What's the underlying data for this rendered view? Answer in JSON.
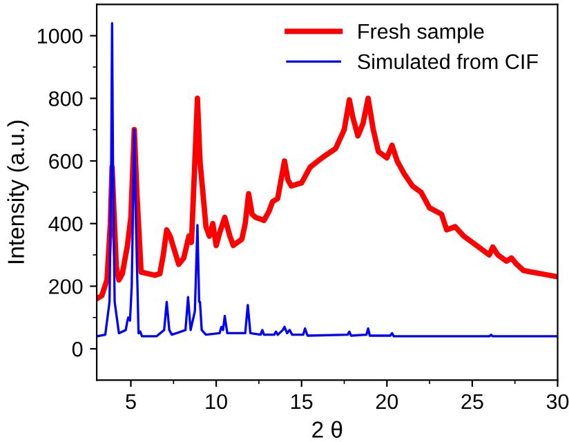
{
  "chart_data": {
    "type": "line",
    "xlabel": "2 θ",
    "ylabel": "Intensity (a.u.)",
    "xlim": [
      3,
      30
    ],
    "ylim": [
      -100,
      1100
    ],
    "xticks": [
      5,
      10,
      15,
      20,
      25,
      30
    ],
    "yticks": [
      0,
      200,
      400,
      600,
      800,
      1000
    ],
    "legend": "top right",
    "grid": false,
    "marker": "none",
    "line_style": "solid",
    "series": [
      {
        "name": "Fresh sample",
        "color": "#ff0000",
        "x": [
          3,
          3.3,
          3.6,
          3.8,
          3.9,
          4.0,
          4.15,
          4.3,
          4.5,
          4.8,
          5.0,
          5.2,
          5.35,
          5.6,
          6.0,
          6.4,
          6.7,
          6.9,
          7.1,
          7.3,
          7.8,
          8.1,
          8.4,
          8.55,
          8.75,
          8.9,
          9.05,
          9.4,
          9.6,
          9.8,
          10.0,
          10.2,
          10.5,
          10.8,
          11.0,
          11.5,
          11.7,
          11.9,
          12.1,
          12.3,
          12.8,
          13.1,
          13.3,
          13.6,
          13.8,
          14.0,
          14.2,
          14.4,
          15.0,
          15.5,
          16.2,
          17.0,
          17.5,
          17.8,
          18.0,
          18.3,
          18.6,
          18.9,
          19.2,
          19.5,
          20.0,
          20.3,
          20.6,
          21.0,
          21.5,
          22.0,
          22.5,
          23.2,
          23.5,
          24.0,
          24.5,
          25.0,
          26.0,
          26.2,
          26.5,
          27.0,
          27.3,
          27.6,
          28.0,
          29.0,
          30
        ],
        "values": [
          160,
          170,
          220,
          400,
          580,
          450,
          260,
          220,
          240,
          330,
          420,
          700,
          500,
          245,
          240,
          235,
          240,
          300,
          380,
          360,
          270,
          290,
          360,
          340,
          600,
          800,
          600,
          390,
          360,
          400,
          330,
          370,
          420,
          360,
          330,
          350,
          400,
          495,
          430,
          420,
          410,
          440,
          470,
          480,
          540,
          600,
          540,
          520,
          530,
          580,
          610,
          640,
          700,
          795,
          740,
          680,
          720,
          800,
          700,
          630,
          610,
          650,
          600,
          560,
          520,
          500,
          450,
          430,
          380,
          390,
          360,
          340,
          300,
          325,
          300,
          280,
          290,
          270,
          250,
          240,
          230
        ]
      },
      {
        "name": "Simulated from CIF",
        "color": "#0000ff",
        "x": [
          3,
          3.5,
          3.75,
          3.85,
          3.9,
          3.95,
          4.05,
          4.3,
          4.7,
          4.8,
          4.85,
          4.95,
          5.05,
          5.2,
          5.3,
          5.45,
          5.55,
          5.65,
          6.5,
          6.95,
          7.1,
          7.25,
          7.4,
          8.2,
          8.35,
          8.5,
          8.75,
          8.9,
          9.0,
          9.05,
          9.15,
          9.4,
          10.2,
          10.3,
          10.4,
          10.5,
          10.65,
          11.7,
          11.85,
          12.0,
          12.6,
          12.7,
          12.8,
          13.4,
          13.5,
          13.6,
          13.9,
          14.0,
          14.15,
          14.3,
          14.45,
          15.1,
          15.2,
          15.35,
          17.7,
          17.8,
          17.9,
          18.8,
          18.9,
          19.0,
          20.2,
          20.3,
          20.4,
          26.0,
          26.1,
          26.2,
          30
        ],
        "values": [
          40,
          45,
          150,
          600,
          1040,
          600,
          150,
          50,
          60,
          90,
          100,
          90,
          200,
          700,
          400,
          50,
          55,
          40,
          40,
          60,
          150,
          60,
          45,
          60,
          165,
          60,
          120,
          395,
          150,
          150,
          60,
          45,
          50,
          70,
          60,
          105,
          50,
          50,
          140,
          50,
          45,
          60,
          45,
          45,
          55,
          45,
          60,
          70,
          50,
          60,
          45,
          45,
          65,
          42,
          45,
          55,
          42,
          45,
          65,
          42,
          42,
          50,
          40,
          40,
          45,
          40,
          40
        ]
      }
    ]
  }
}
